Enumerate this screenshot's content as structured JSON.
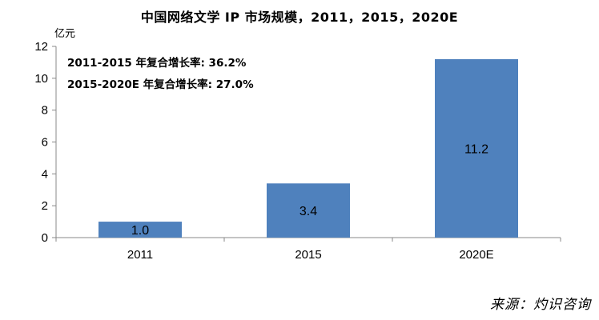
{
  "chart_data": {
    "type": "bar",
    "title": "中国网络文学 IP 市场规模，2011，2015，2020E",
    "ylabel": "亿元",
    "xlabel": "",
    "categories": [
      "2011",
      "2015",
      "2020E"
    ],
    "values": [
      1.0,
      3.4,
      11.2
    ],
    "data_labels": [
      "1.0",
      "3.4",
      "11.2"
    ],
    "ylim": [
      0,
      12
    ],
    "yticks": [
      "0",
      "2",
      "4",
      "6",
      "8",
      "10",
      "12"
    ],
    "grid": false,
    "bar_color": "#4f81bd",
    "annotations": [
      "2011-2015 年复合增长率: 36.2%",
      "2015-2020E 年复合增长率: 27.0%"
    ]
  },
  "source": "来源：灼识咨询"
}
